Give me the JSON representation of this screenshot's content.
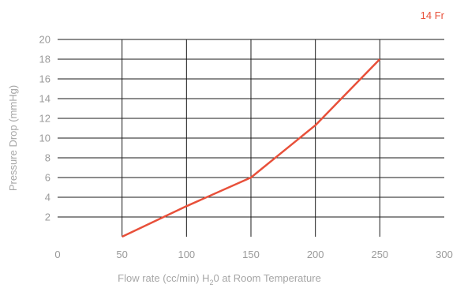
{
  "chart_data": {
    "type": "line",
    "xlabel_prefix": "Flow rate (cc/min) H",
    "xlabel_sub": "2",
    "xlabel_suffix": "0 at Room Temperature",
    "ylabel": "Pressure Drop (mmHg)",
    "xlim": [
      0,
      300
    ],
    "ylim": [
      0,
      20
    ],
    "x_ticks": [
      0,
      50,
      100,
      150,
      200,
      250,
      300
    ],
    "y_ticks": [
      2,
      4,
      6,
      8,
      10,
      12,
      14,
      16,
      18,
      20
    ],
    "grid": true,
    "legend_position": "top-right",
    "series": [
      {
        "name": "14 Fr",
        "color": "#e8503a",
        "x": [
          50,
          100,
          150,
          200,
          250
        ],
        "y": [
          0,
          3.1,
          6,
          11.3,
          18
        ]
      }
    ]
  }
}
